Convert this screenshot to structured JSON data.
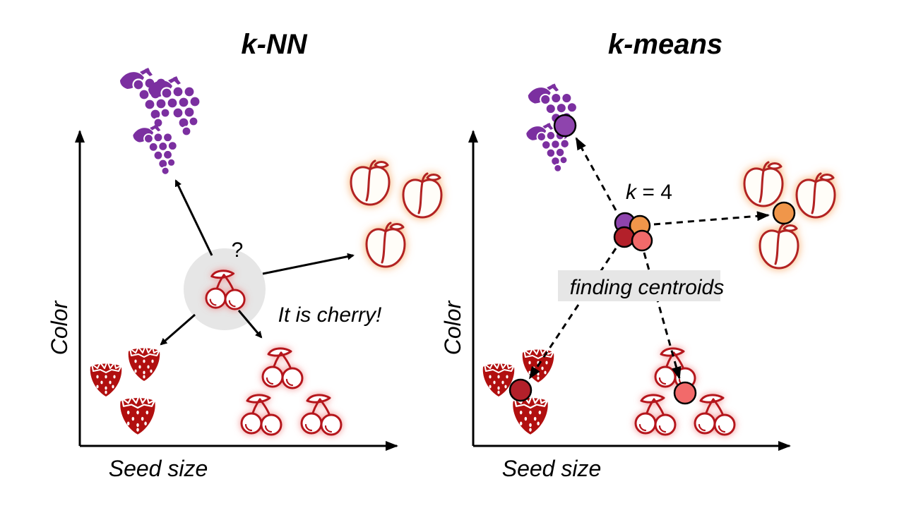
{
  "left_panel": {
    "title": "k-NN",
    "x_axis_label": "Seed size",
    "y_axis_label": "Color",
    "query_mark": "?",
    "result_text": "It is cherry!"
  },
  "right_panel": {
    "title": "k-means",
    "x_axis_label": "Seed size",
    "y_axis_label": "Color",
    "k_symbol": "k",
    "k_value_text": " = 4",
    "process_label": "finding centroids"
  },
  "colors": {
    "grape": "#7b2fa0",
    "peach": "#b22222",
    "peach_glow": "#f7a35c",
    "cherry": "#b5121b",
    "cherry_glow": "#f28b8b",
    "strawberry": "#b10f0f",
    "centroid_purple": "#8e44ad",
    "centroid_orange": "#f0964a",
    "centroid_red_dark": "#b3202a",
    "centroid_red_light": "#f26a6a",
    "query_halo": "#e6e6e6",
    "label_box": "#e6e6e6"
  },
  "icons": [
    "grape-icon",
    "peach-icon",
    "cherry-icon",
    "strawberry-icon"
  ]
}
